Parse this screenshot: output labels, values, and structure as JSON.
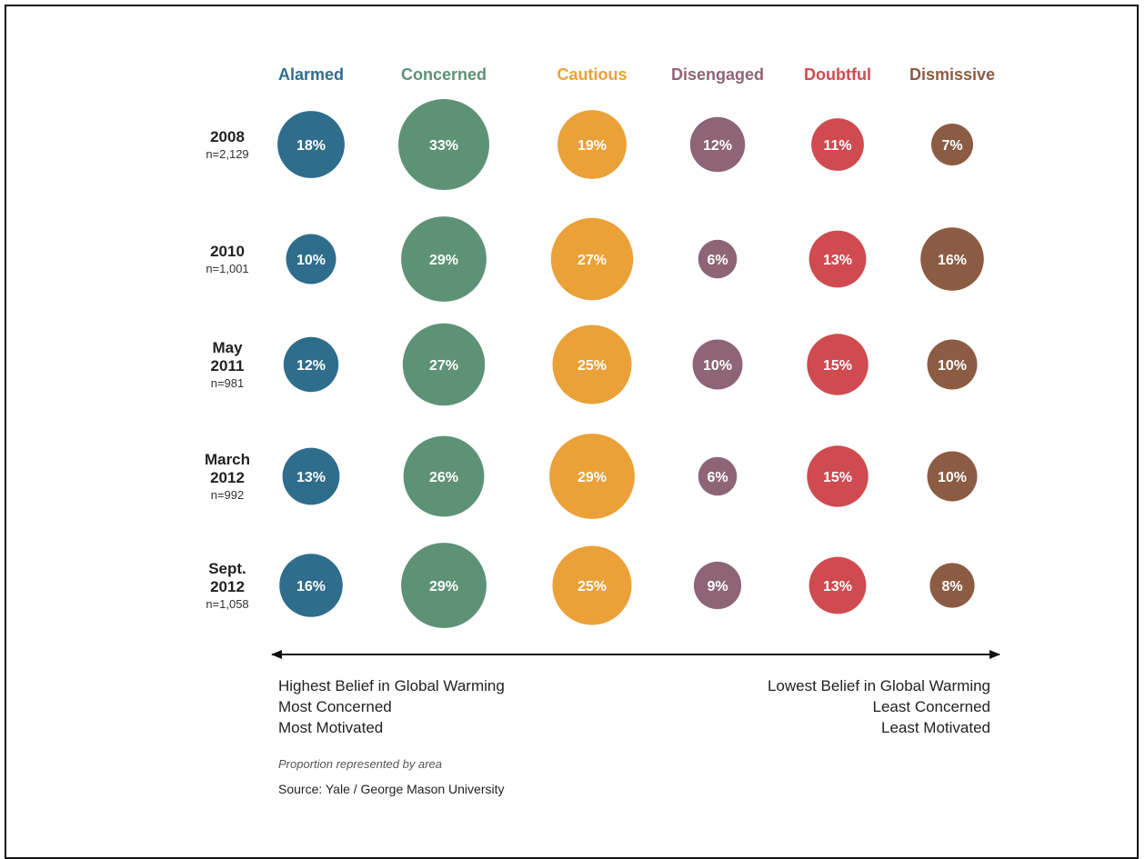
{
  "chart_data": {
    "type": "bubble-grid",
    "categories": [
      {
        "name": "Alarmed",
        "color": "#2f6d8c"
      },
      {
        "name": "Concerned",
        "color": "#5e9276"
      },
      {
        "name": "Cautious",
        "color": "#eaa138"
      },
      {
        "name": "Disengaged",
        "color": "#8e6576"
      },
      {
        "name": "Doubtful",
        "color": "#cf4b50"
      },
      {
        "name": "Dismissive",
        "color": "#8b5c43"
      }
    ],
    "rows": [
      {
        "label_lines": [
          "2008"
        ],
        "n": "n=2,129",
        "values": [
          18,
          33,
          19,
          12,
          11,
          7
        ],
        "labels": [
          "18%",
          "33%",
          "19%",
          "12%",
          "11%",
          "7%"
        ]
      },
      {
        "label_lines": [
          "2010"
        ],
        "n": "n=1,001",
        "values": [
          10,
          29,
          27,
          6,
          13,
          16
        ],
        "labels": [
          "10%",
          "29%",
          "27%",
          "6%",
          "13%",
          "16%"
        ]
      },
      {
        "label_lines": [
          "May",
          "2011"
        ],
        "n": "n=981",
        "values": [
          12,
          27,
          25,
          10,
          15,
          10
        ],
        "labels": [
          "12%",
          "27%",
          "25%",
          "10%",
          "15%",
          "10%"
        ]
      },
      {
        "label_lines": [
          "March",
          "2012"
        ],
        "n": "n=992",
        "values": [
          13,
          26,
          29,
          6,
          15,
          10
        ],
        "labels": [
          "13%",
          "26%",
          "29%",
          "6%",
          "15%",
          "10%"
        ]
      },
      {
        "label_lines": [
          "Sept.",
          "2012"
        ],
        "n": "n=1,058",
        "values": [
          16,
          29,
          25,
          9,
          13,
          8
        ],
        "labels": [
          "16%",
          "29%",
          "25%",
          "9%",
          "13%",
          "8%"
        ]
      }
    ],
    "scale_left": [
      "Highest Belief in Global Warming",
      "Most Concerned",
      "Most Motivated"
    ],
    "scale_right": [
      "Lowest Belief in Global Warming",
      "Least Concerned",
      "Least Motivated"
    ],
    "note": "Proportion represented by area",
    "source": "Source: Yale / George Mason University"
  }
}
